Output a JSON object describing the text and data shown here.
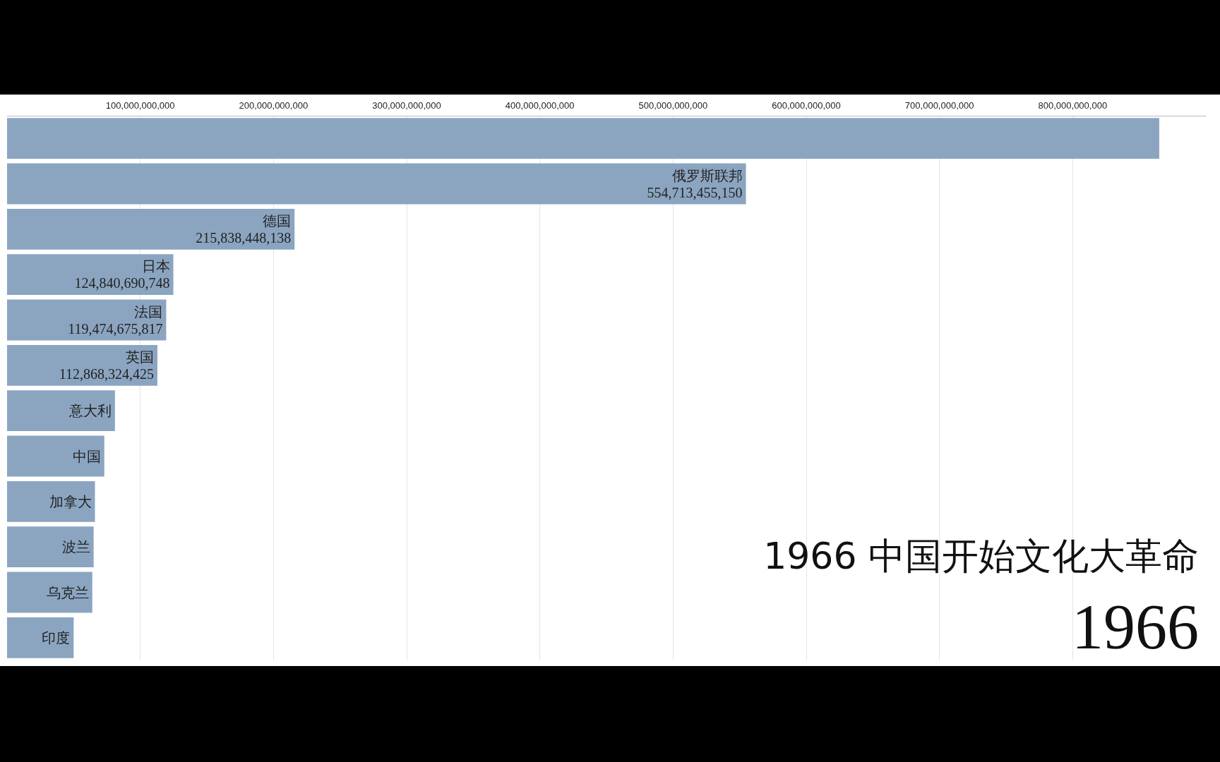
{
  "chart_data": {
    "type": "bar",
    "orientation": "horizontal",
    "categories": [
      null,
      "俄罗斯联邦",
      "德国",
      "日本",
      "法国",
      "英国",
      "意大利",
      "中国",
      "加拿大",
      "波兰",
      "乌克兰",
      "印度"
    ],
    "values": [
      865000000000,
      554713455150,
      215838448138,
      124840690748,
      119474675817,
      112868324425,
      81000000000,
      73000000000,
      66000000000,
      65000000000,
      64000000000,
      50000000000
    ],
    "value_labels": [
      null,
      "554,713,455,150",
      "215,838,448,138",
      "124,840,690,748",
      "119,474,675,817",
      "112,868,324,425",
      null,
      null,
      null,
      null,
      null,
      null
    ],
    "color": "#8ba5c1",
    "xlim": [
      0,
      900000000000
    ],
    "xticks": [
      {
        "value": 100000000000,
        "label": "100,000,000,000"
      },
      {
        "value": 200000000000,
        "label": "200,000,000,000"
      },
      {
        "value": 300000000000,
        "label": "300,000,000,000"
      },
      {
        "value": 400000000000,
        "label": "400,000,000,000"
      },
      {
        "value": 500000000000,
        "label": "500,000,000,000"
      },
      {
        "value": 600000000000,
        "label": "600,000,000,000"
      },
      {
        "value": 700000000000,
        "label": "700,000,000,000"
      },
      {
        "value": 800000000000,
        "label": "800,000,000,000"
      }
    ],
    "grid": "x",
    "annotations": [
      "1966 中国开始文化大革命",
      "1966"
    ]
  }
}
